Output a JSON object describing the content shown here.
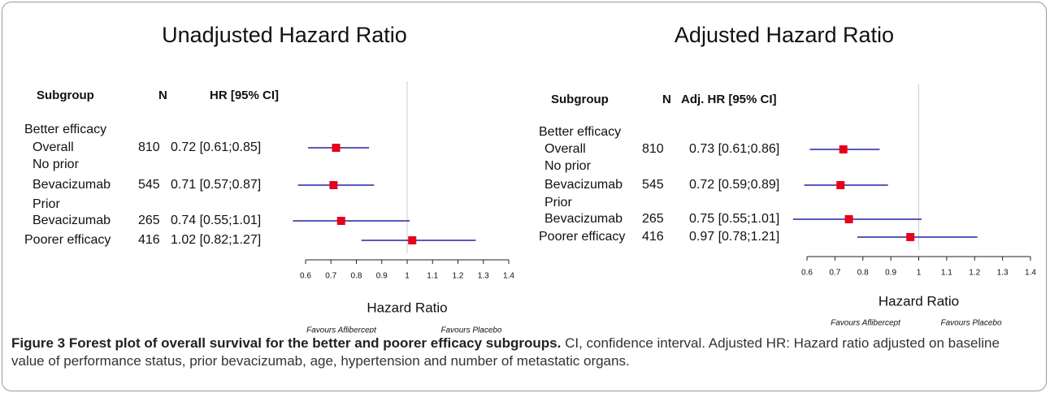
{
  "chart_data": [
    {
      "type": "forest",
      "title": "Unadjusted Hazard Ratio",
      "columns": [
        "Subgroup",
        "N",
        "HR [95% CI]"
      ],
      "rows": [
        {
          "label": "Better efficacy"
        },
        {
          "label": "Overall",
          "n": 810,
          "hr": 0.72,
          "lower": 0.61,
          "upper": 0.85,
          "value_label": "0.72 [0.61;0.85]"
        },
        {
          "label": "No prior"
        },
        {
          "label": "Bevacizumab",
          "n": 545,
          "hr": 0.71,
          "lower": 0.57,
          "upper": 0.87,
          "value_label": "0.71 [0.57;0.87]"
        },
        {
          "label": "Prior"
        },
        {
          "label": "Bevacizumab",
          "n": 265,
          "hr": 0.74,
          "lower": 0.55,
          "upper": 1.01,
          "value_label": "0.74 [0.55;1.01]"
        },
        {
          "label": "Poorer efficacy",
          "n": 416,
          "hr": 1.02,
          "lower": 0.82,
          "upper": 1.27,
          "value_label": "1.02 [0.82;1.27]"
        }
      ],
      "xlabel": "Hazard Ratio",
      "xlim": [
        0.6,
        1.4
      ],
      "xticks": [
        0.6,
        0.7,
        0.8,
        0.9,
        1,
        1.1,
        1.2,
        1.3,
        1.4
      ],
      "reference_line": 1,
      "favours": [
        "Favours Aflibercept",
        "Favours Placebo"
      ],
      "color": "#e8001a",
      "ci_color": "#2222a8"
    },
    {
      "type": "forest",
      "title": "Adjusted Hazard Ratio",
      "columns": [
        "Subgroup",
        "N",
        "Adj. HR [95% CI]"
      ],
      "rows": [
        {
          "label": "Better efficacy"
        },
        {
          "label": "Overall",
          "n": 810,
          "hr": 0.73,
          "lower": 0.61,
          "upper": 0.86,
          "value_label": "0.73 [0.61;0.86]"
        },
        {
          "label": "No prior"
        },
        {
          "label": "Bevacizumab",
          "n": 545,
          "hr": 0.72,
          "lower": 0.59,
          "upper": 0.89,
          "value_label": "0.72 [0.59;0.89]"
        },
        {
          "label": "Prior"
        },
        {
          "label": "Bevacizumab",
          "n": 265,
          "hr": 0.75,
          "lower": 0.55,
          "upper": 1.01,
          "value_label": "0.75 [0.55;1.01]"
        },
        {
          "label": "Poorer efficacy",
          "n": 416,
          "hr": 0.97,
          "lower": 0.78,
          "upper": 1.21,
          "value_label": "0.97 [0.78;1.21]"
        }
      ],
      "xlabel": "Hazard Ratio",
      "xlim": [
        0.6,
        1.4
      ],
      "xticks": [
        0.6,
        0.7,
        0.8,
        0.9,
        1,
        1.1,
        1.2,
        1.3,
        1.4
      ],
      "reference_line": 1,
      "favours": [
        "Favours Aflibercept",
        "Favours Placebo"
      ],
      "color": "#e8001a",
      "ci_color": "#2222a8"
    }
  ],
  "caption": {
    "title": "Figure 3 Forest plot of overall survival for the better and poorer efficacy subgroups.",
    "text": "CI, confidence interval. Adjusted HR: Hazard ratio adjusted on baseline value of performance status, prior bevacizumab, age, hypertension and number of metastatic organs."
  }
}
